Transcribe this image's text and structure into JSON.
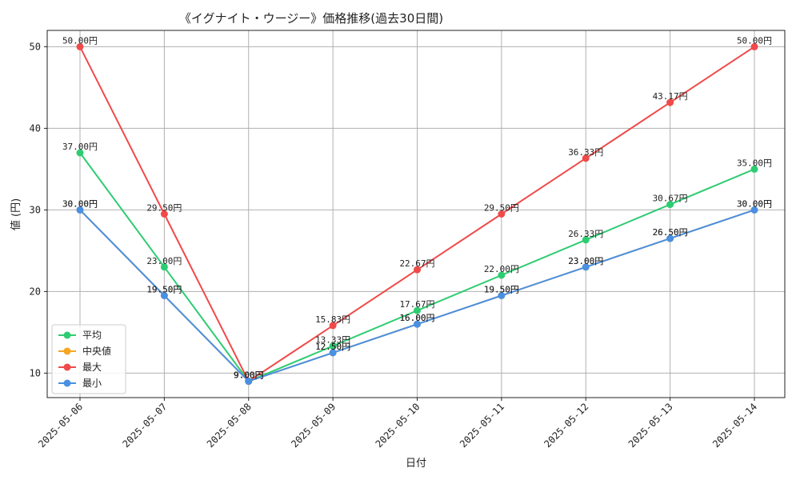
{
  "chart_data": {
    "type": "line",
    "title": "《イグナイト・ウージー》価格推移(過去30日間)",
    "xlabel": "日付",
    "ylabel": "値 (円)",
    "categories": [
      "2025-05-06",
      "2025-05-07",
      "2025-05-08",
      "2025-05-09",
      "2025-05-10",
      "2025-05-11",
      "2025-05-12",
      "2025-05-13",
      "2025-05-14"
    ],
    "ylim": [
      7,
      52
    ],
    "yticks": [
      10,
      20,
      30,
      40,
      50
    ],
    "grid": true,
    "legend_position": "lower-left",
    "value_suffix": "円",
    "series": [
      {
        "name": "平均",
        "color": "#2ecc71",
        "values": [
          37.0,
          23.0,
          9.0,
          13.33,
          17.67,
          22.0,
          26.33,
          30.67,
          35.0
        ]
      },
      {
        "name": "中央値",
        "color": "#f5a623",
        "values": [
          30.0,
          19.5,
          9.0,
          12.5,
          16.0,
          19.5,
          23.0,
          26.5,
          30.0
        ]
      },
      {
        "name": "最大",
        "color": "#f04a4a",
        "values": [
          50.0,
          29.5,
          9.0,
          15.83,
          22.67,
          29.5,
          36.33,
          43.17,
          50.0
        ]
      },
      {
        "name": "最小",
        "color": "#4a90e2",
        "values": [
          30.0,
          19.5,
          9.0,
          12.5,
          16.0,
          19.5,
          23.0,
          26.5,
          30.0
        ]
      }
    ]
  }
}
